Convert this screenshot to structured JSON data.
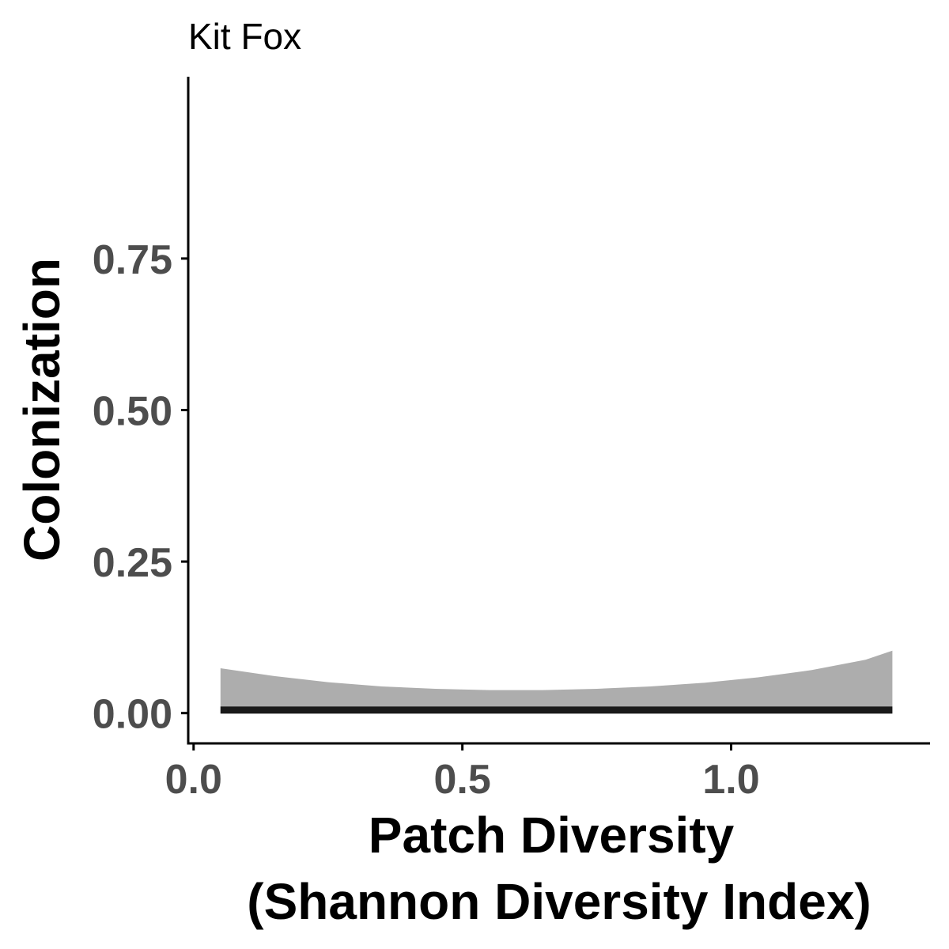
{
  "chart_data": {
    "type": "area",
    "title": "Kit Fox",
    "xlabel_lines": [
      "Patch Diversity",
      "(Shannon Diversity Index)"
    ],
    "ylabel": "Colonization",
    "xlim": [
      -0.01,
      1.37
    ],
    "ylim": [
      -0.05,
      1.05
    ],
    "x_ticks": [
      {
        "value": 0.0,
        "label": "0.0"
      },
      {
        "value": 0.5,
        "label": "0.5"
      },
      {
        "value": 1.0,
        "label": "1.0"
      }
    ],
    "y_ticks": [
      {
        "value": 0.0,
        "label": "0.00"
      },
      {
        "value": 0.25,
        "label": "0.25"
      },
      {
        "value": 0.5,
        "label": "0.50"
      },
      {
        "value": 0.75,
        "label": "0.75"
      }
    ],
    "grid": false,
    "legend": "none",
    "series": [
      {
        "kind": "ribbon",
        "color": "#adadad",
        "x": [
          0.05,
          0.15,
          0.25,
          0.35,
          0.45,
          0.55,
          0.65,
          0.75,
          0.85,
          0.95,
          1.05,
          1.15,
          1.25,
          1.3
        ],
        "lower": [
          0.0,
          0.0,
          0.0,
          0.0,
          0.0,
          0.0,
          0.0,
          0.0,
          0.0,
          0.0,
          0.0,
          0.0,
          0.0,
          0.0
        ],
        "upper": [
          0.074,
          0.061,
          0.051,
          0.044,
          0.04,
          0.038,
          0.038,
          0.04,
          0.044,
          0.05,
          0.059,
          0.071,
          0.088,
          0.103
        ]
      },
      {
        "kind": "line",
        "color": "#1a1a1a",
        "x": [
          0.05,
          1.3
        ],
        "y": [
          0.005,
          0.005
        ]
      }
    ]
  }
}
